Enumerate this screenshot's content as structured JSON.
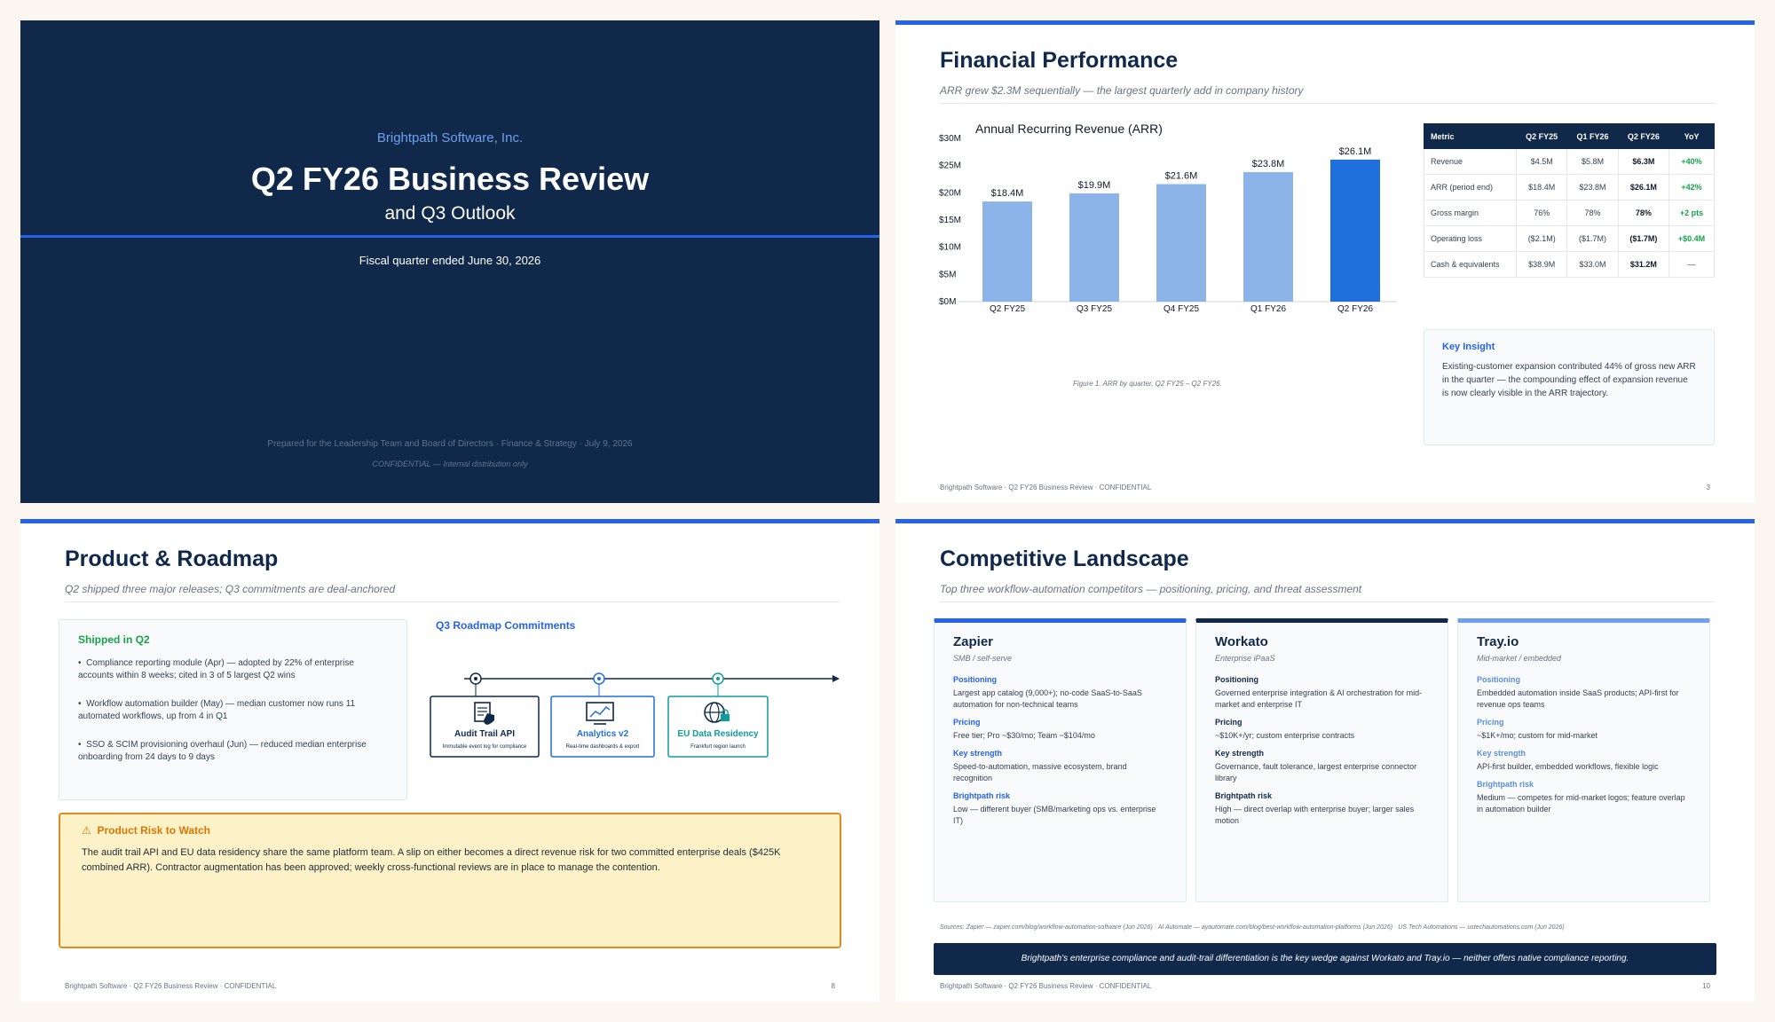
{
  "slide1": {
    "company": "Brightpath Software, Inc.",
    "title": "Q2 FY26 Business Review",
    "subtitle": "and Q3 Outlook",
    "fiscal": "Fiscal quarter ended June 30, 2026",
    "prepared": "Prepared for the Leadership Team and Board of Directors · Finance & Strategy · July 9, 2026",
    "confidential": "CONFIDENTIAL — Internal distribution only"
  },
  "slide2": {
    "title": "Financial Performance",
    "subtitle": "ARR grew $2.3M sequentially — the largest quarterly add in company history",
    "caption": "Figure 1. ARR by quarter, Q2 FY25 – Q2 FY26.",
    "table": {
      "headers": [
        "Metric",
        "Q2 FY25",
        "Q1 FY26",
        "Q2 FY26",
        "YoY"
      ],
      "rows": [
        [
          "Revenue",
          "$4.5M",
          "$5.8M",
          "$6.3M",
          "+40%"
        ],
        [
          "ARR (period end)",
          "$18.4M",
          "$23.8M",
          "$26.1M",
          "+42%"
        ],
        [
          "Gross margin",
          "76%",
          "78%",
          "78%",
          "+2 pts"
        ],
        [
          "Operating loss",
          "($2.1M)",
          "($1.7M)",
          "($1.7M)",
          "+$0.4M"
        ],
        [
          "Cash & equivalents",
          "$38.9M",
          "$33.0M",
          "$31.2M",
          "—"
        ]
      ]
    },
    "insight_title": "Key Insight",
    "insight_text": "Existing-customer expansion contributed 44% of gross new ARR in the quarter — the compounding effect of expansion revenue is now clearly visible in the ARR trajectory.",
    "footer": "Brightpath Software · Q2 FY26 Business Review · CONFIDENTIAL",
    "page": "3"
  },
  "chart_data": {
    "type": "bar",
    "title": "Annual Recurring Revenue (ARR)",
    "categories": [
      "Q2 FY25",
      "Q3 FY25",
      "Q4 FY25",
      "Q1 FY26",
      "Q2 FY26"
    ],
    "values": [
      18.4,
      19.9,
      21.6,
      23.8,
      26.1
    ],
    "data_labels": [
      "$18.4M",
      "$19.9M",
      "$21.6M",
      "$23.8M",
      "$26.1M"
    ],
    "ylim": [
      0,
      30
    ],
    "yticks": [
      "$0M",
      "$5M",
      "$10M",
      "$15M",
      "$20M",
      "$25M",
      "$30M"
    ],
    "colors": [
      "#8cb4e8",
      "#8cb4e8",
      "#8cb4e8",
      "#8cb4e8",
      "#1f6fdc"
    ],
    "grid": false
  },
  "slide3": {
    "title": "Product & Roadmap",
    "subtitle": "Q2 shipped three major releases; Q3 commitments are deal-anchored",
    "shipped_title": "Shipped in Q2",
    "shipped": [
      "Compliance reporting module (Apr) — adopted by 22% of enterprise accounts within 8 weeks; cited in 3 of 5 largest Q2 wins",
      "Workflow automation builder (May) — median customer now runs 11 automated workflows, up from 4 in Q1",
      "SSO & SCIM provisioning overhaul (Jun) — reduced median enterprise onboarding from 24 days to 9 days"
    ],
    "roadmap_title": "Q3 Roadmap Commitments",
    "roadmap": [
      {
        "name": "Audit Trail API",
        "desc": "Immutable event log for compliance",
        "icon": "document-lock-icon"
      },
      {
        "name": "Analytics v2",
        "desc": "Real-time dashboards & export",
        "icon": "chart-monitor-icon"
      },
      {
        "name": "EU Data Residency",
        "desc": "Frankfurt region launch",
        "icon": "globe-lock-icon"
      }
    ],
    "risk_title": "Product Risk to Watch",
    "risk_icon": "warning-icon",
    "risk_text": "The audit trail API and EU data residency share the same platform team. A slip on either becomes a direct revenue risk for two committed enterprise deals ($425K combined ARR). Contractor augmentation has been approved; weekly cross-functional reviews are in place to manage the contention.",
    "footer": "Brightpath Software · Q2 FY26 Business Review · CONFIDENTIAL",
    "page": "8"
  },
  "slide4": {
    "title": "Competitive Landscape",
    "subtitle": "Top three workflow-automation competitors — positioning, pricing, and threat assessment",
    "labels": {
      "positioning": "Positioning",
      "pricing": "Pricing",
      "strength": "Key strength",
      "risk": "Brightpath risk"
    },
    "competitors": [
      {
        "name": "Zapier",
        "segment": "SMB / self-serve",
        "accent": "#2563eb",
        "label_color": "#2563eb",
        "positioning": "Largest app catalog (9,000+); no-code SaaS-to-SaaS automation for non-technical teams",
        "pricing": "Free tier; Pro ~$30/mo; Team ~$104/mo",
        "strength": "Speed-to-automation, massive ecosystem, brand recognition",
        "risk": "Low — different buyer (SMB/marketing ops vs. enterprise IT)"
      },
      {
        "name": "Workato",
        "segment": "Enterprise iPaaS",
        "accent": "#10284a",
        "label_color": "#10284a",
        "positioning": "Governed enterprise integration & AI orchestration for mid-market and enterprise IT",
        "pricing": "~$10K+/yr; custom enterprise contracts",
        "strength": "Governance, fault tolerance, largest enterprise connector library",
        "risk": "High — direct overlap with enterprise buyer; larger sales motion"
      },
      {
        "name": "Tray.io",
        "segment": "Mid-market / embedded",
        "accent": "#6ea0ec",
        "label_color": "#5b8fe0",
        "positioning": "Embedded automation inside SaaS products; API-first for revenue ops teams",
        "pricing": "~$1K+/mo; custom for mid-market",
        "strength": "API-first builder, embedded workflows, flexible logic",
        "risk": "Medium — competes for mid-market logos; feature overlap in automation builder"
      }
    ],
    "sources": "Sources: Zapier — zapier.com/blog/workflow-automation-software (Jun 2026) · AI Automate — ayautomate.com/blog/best-workflow-automation-platforms (Jun 2026) · US Tech Automations — ustechautomations.com (Jun 2026)",
    "banner": "Brightpath's enterprise compliance and audit-trail differentiation is the key wedge against Workato and Tray.io — neither offers native compliance reporting.",
    "footer": "Brightpath Software · Q2 FY26 Business Review · CONFIDENTIAL",
    "page": "10"
  }
}
